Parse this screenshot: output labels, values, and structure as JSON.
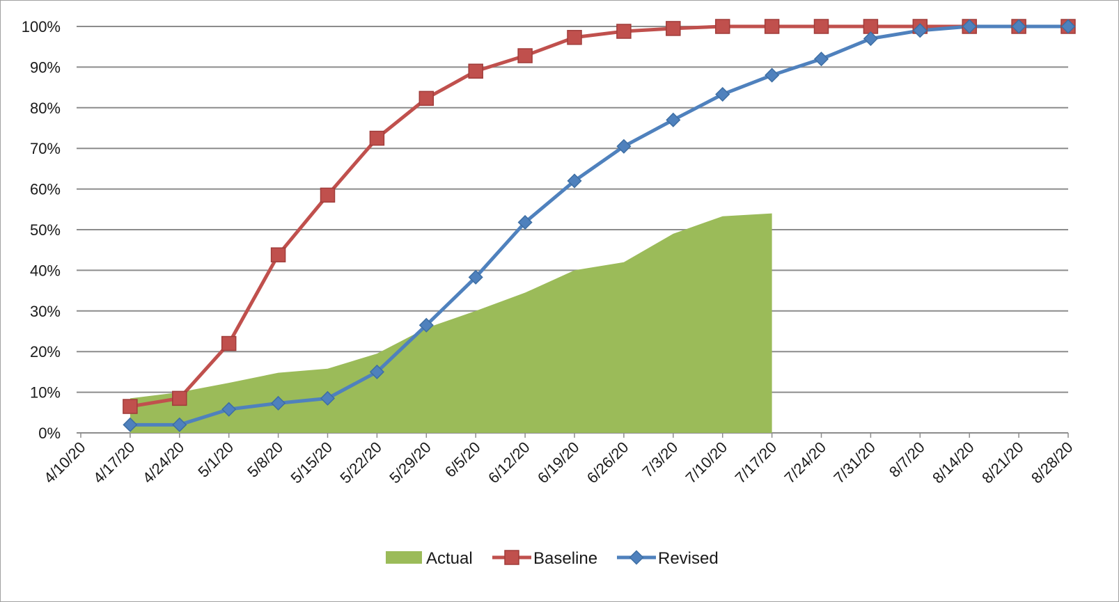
{
  "chart_data": {
    "type": "line",
    "title": "",
    "xlabel": "",
    "ylabel": "",
    "ylim": [
      0,
      100
    ],
    "y_ticks": [
      "0%",
      "10%",
      "20%",
      "30%",
      "40%",
      "50%",
      "60%",
      "70%",
      "80%",
      "90%",
      "100%"
    ],
    "categories": [
      "4/10/20",
      "4/17/20",
      "4/24/20",
      "5/1/20",
      "5/8/20",
      "5/15/20",
      "5/22/20",
      "5/29/20",
      "6/5/20",
      "6/12/20",
      "6/19/20",
      "6/26/20",
      "7/3/20",
      "7/10/20",
      "7/17/20",
      "7/24/20",
      "7/31/20",
      "8/7/20",
      "8/14/20",
      "8/21/20",
      "8/28/20"
    ],
    "grid": true,
    "legend_position": "bottom",
    "series": [
      {
        "name": "Actual",
        "kind": "area",
        "color": "#9bbb59",
        "values": [
          null,
          8.5,
          10,
          12.3,
          14.8,
          15.8,
          19.5,
          25.8,
          30.0,
          34.5,
          40.0,
          42.0,
          49.0,
          53.3,
          54.0,
          null,
          null,
          null,
          null,
          null,
          null
        ]
      },
      {
        "name": "Baseline",
        "kind": "line",
        "marker": "square",
        "color": "#c0504d",
        "values": [
          null,
          6.5,
          8.5,
          22.0,
          43.8,
          58.5,
          72.5,
          82.3,
          89.0,
          92.8,
          97.3,
          98.8,
          99.5,
          100,
          100,
          100,
          100,
          100,
          100,
          100,
          100
        ]
      },
      {
        "name": "Revised",
        "kind": "line",
        "marker": "diamond",
        "color": "#4f81bd",
        "values": [
          null,
          2.0,
          2.0,
          5.8,
          7.3,
          8.5,
          15.0,
          26.5,
          38.3,
          51.8,
          62.0,
          70.5,
          77.0,
          83.3,
          88.0,
          92.0,
          97.0,
          99.0,
          100,
          100,
          100
        ]
      }
    ]
  }
}
